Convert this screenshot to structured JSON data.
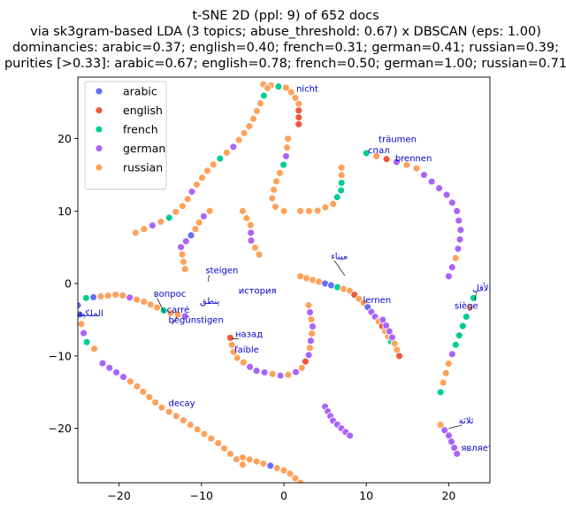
{
  "chart_data": {
    "type": "scatter",
    "title_lines": [
      "t-SNE 2D (ppl: 9) of 652 docs",
      "via sk3gram-based LDA (3 topics; abuse_threshold: 0.67) x DBSCAN (eps: 1.00)",
      "dominancies: arabic=0.37; english=0.40; french=0.31; german=0.41; russian=0.39;",
      "purities [>0.33]: arabic=0.67; english=0.78; french=0.50; german=1.00; russian=0.71"
    ],
    "xlabel": "",
    "ylabel": "",
    "xlim": [
      -25,
      25
    ],
    "ylim": [
      -27.5,
      28.5
    ],
    "xticks": [
      -20,
      -10,
      0,
      10,
      20
    ],
    "yticks": [
      -20,
      -10,
      0,
      10,
      20
    ],
    "legend_position": "top-left",
    "series": [
      {
        "name": "arabic",
        "color": "#636efa"
      },
      {
        "name": "english",
        "color": "#ef553b"
      },
      {
        "name": "french",
        "color": "#00cc96"
      },
      {
        "name": "german",
        "color": "#ab63fa"
      },
      {
        "name": "russian",
        "color": "#ffa15a"
      }
    ],
    "clusters": [
      {
        "path": [
          [
            -2.5,
            27.5
          ],
          [
            0.5,
            27
          ],
          [
            1.8,
            25
          ],
          [
            1.8,
            22
          ]
        ],
        "colors": [
          4,
          4,
          2,
          4,
          4,
          4,
          4,
          1,
          1,
          1
        ]
      },
      {
        "path": [
          [
            -18,
            7
          ],
          [
            -14,
            9
          ],
          [
            -12,
            11
          ],
          [
            -11,
            13
          ],
          [
            -9,
            16
          ],
          [
            -6,
            19
          ],
          [
            -4,
            22
          ],
          [
            -2,
            27
          ]
        ],
        "colors": [
          4,
          4,
          3,
          4,
          2,
          4,
          4,
          4,
          3,
          4,
          4,
          4,
          4,
          2,
          4,
          3,
          4,
          4,
          4,
          4,
          4,
          4,
          2,
          4
        ]
      },
      {
        "path": [
          [
            0.5,
            20
          ],
          [
            0.2,
            17
          ],
          [
            -0.8,
            14.5
          ],
          [
            -1.5,
            12
          ],
          [
            -1,
            10.5
          ],
          [
            0,
            10
          ]
        ],
        "colors": [
          4,
          4,
          3,
          2,
          4,
          4,
          4,
          4,
          4,
          4
        ]
      },
      {
        "path": [
          [
            2,
            10
          ],
          [
            4,
            10
          ],
          [
            6,
            11
          ],
          [
            7,
            13
          ],
          [
            7,
            16
          ]
        ],
        "colors": [
          4,
          4,
          4,
          4,
          4,
          2,
          2,
          2,
          4,
          4
        ]
      },
      {
        "path": [
          [
            10,
            18
          ],
          [
            13,
            17
          ],
          [
            16,
            16
          ],
          [
            18,
            14
          ],
          [
            20,
            12
          ],
          [
            21,
            10
          ]
        ],
        "colors": [
          2,
          4,
          1,
          3,
          4,
          4,
          3,
          3,
          3,
          3,
          3,
          3
        ]
      },
      {
        "path": [
          [
            21,
            10
          ],
          [
            21.5,
            7
          ],
          [
            21,
            4
          ],
          [
            20,
            1
          ]
        ],
        "colors": [
          3,
          3,
          3,
          3,
          3,
          4,
          3,
          3
        ]
      },
      {
        "path": [
          [
            -12,
            2
          ],
          [
            -12.5,
            5
          ],
          [
            -11,
            7
          ],
          [
            -10,
            9
          ],
          [
            -9,
            10
          ]
        ],
        "colors": [
          4,
          4,
          4,
          3,
          3,
          0,
          4,
          4,
          3,
          4
        ]
      },
      {
        "path": [
          [
            -5,
            10
          ],
          [
            -4,
            8
          ],
          [
            -4,
            6
          ],
          [
            -3,
            4
          ]
        ],
        "colors": [
          4,
          4,
          4,
          3,
          3,
          4,
          4
        ]
      },
      {
        "path": [
          [
            2,
            1
          ],
          [
            5,
            0
          ],
          [
            8,
            -1
          ],
          [
            10,
            -3
          ],
          [
            12,
            -6
          ],
          [
            13,
            -8
          ]
        ],
        "colors": [
          4,
          4,
          4,
          4,
          0,
          0,
          2,
          4,
          4,
          1,
          4,
          4,
          0,
          3,
          3,
          4,
          1,
          4,
          4,
          2
        ]
      },
      {
        "path": [
          [
            -24,
            -2
          ],
          [
            -20,
            -1.5
          ],
          [
            -17,
            -2.5
          ],
          [
            -14,
            -4
          ],
          [
            -12,
            -4.5
          ]
        ],
        "colors": [
          2,
          0,
          4,
          4,
          4,
          4,
          3,
          4,
          4,
          4,
          4,
          2,
          4,
          4,
          3
        ]
      },
      {
        "path": [
          [
            -25,
            -3
          ],
          [
            -24.5,
            -6
          ],
          [
            -24,
            -8
          ],
          [
            -23,
            -9
          ]
        ],
        "colors": [
          0,
          0,
          4,
          3,
          2,
          4
        ]
      },
      {
        "path": [
          [
            -6.5,
            -7.5
          ],
          [
            -6,
            -10
          ],
          [
            -3.5,
            -12
          ],
          [
            0,
            -12.8
          ],
          [
            2,
            -12
          ],
          [
            3,
            -10
          ],
          [
            3.5,
            -6
          ],
          [
            3,
            -3
          ]
        ],
        "colors": [
          1,
          4,
          4,
          4,
          4,
          3,
          3,
          3,
          4,
          3,
          4,
          3,
          4,
          1,
          3,
          4,
          3,
          4,
          3,
          4,
          3,
          4
        ]
      },
      {
        "path": [
          [
            23,
            -2
          ],
          [
            22,
            -5
          ],
          [
            21,
            -8
          ],
          [
            20,
            -11
          ],
          [
            19,
            -15
          ]
        ],
        "colors": [
          2,
          4,
          2,
          2,
          2,
          2,
          3,
          4,
          4,
          4,
          2
        ]
      },
      {
        "path": [
          [
            -22,
            -11
          ],
          [
            -18,
            -14
          ],
          [
            -15,
            -17
          ],
          [
            -12,
            -19
          ],
          [
            -8,
            -22
          ],
          [
            -5,
            -25
          ]
        ],
        "colors": [
          3,
          3,
          3,
          3,
          4,
          4,
          4,
          4,
          4,
          4,
          4,
          4,
          4,
          4,
          4,
          4,
          4,
          4,
          4,
          4,
          4,
          4
        ]
      },
      {
        "path": [
          [
            -5,
            -24
          ],
          [
            -2,
            -25
          ],
          [
            0.5,
            -26
          ],
          [
            2,
            -27.5
          ]
        ],
        "colors": [
          4,
          4,
          4,
          4,
          0,
          4,
          4,
          4,
          4,
          4
        ]
      },
      {
        "path": [
          [
            5,
            -17
          ],
          [
            6,
            -19
          ],
          [
            8,
            -21
          ]
        ],
        "colors": [
          3,
          3,
          3,
          3,
          3,
          3,
          3,
          3
        ]
      },
      {
        "path": [
          [
            12,
            -5
          ],
          [
            13,
            -7
          ],
          [
            14,
            -10
          ]
        ],
        "colors": [
          3,
          3,
          3,
          3,
          4,
          4,
          1
        ]
      },
      {
        "path": [
          [
            19,
            -19.5
          ],
          [
            20,
            -21
          ],
          [
            21,
            -23.5
          ]
        ],
        "colors": [
          4,
          3,
          3,
          3,
          3,
          3
        ]
      }
    ],
    "annotations": [
      {
        "text": "nicht",
        "x": 1.5,
        "y": 26.5,
        "tx": 1.5,
        "ty": 26.5
      },
      {
        "text": "träumen",
        "x": 11.5,
        "y": 19.5,
        "tx": 11.5,
        "ty": 19.5
      },
      {
        "text": "спал",
        "x": 10.2,
        "y": 18.0,
        "tx": 10.2,
        "ty": 18.0
      },
      {
        "text": "brennen",
        "x": 13.5,
        "y": 16.9,
        "tx": 13.5,
        "ty": 16.9
      },
      {
        "text": "steigen",
        "x": -9.5,
        "y": 1.4,
        "tx": -9.2,
        "ty": 0.3
      },
      {
        "text": "история",
        "x": -5.5,
        "y": -1.4,
        "tx": -5.5,
        "ty": -1.4
      },
      {
        "text": "вопрос",
        "x": -15.8,
        "y": -1.8,
        "tx": -14.5,
        "ty": -4.0
      },
      {
        "text": "ينطق",
        "x": -10.2,
        "y": -2.8,
        "tx": -10.2,
        "ty": -2.8
      },
      {
        "text": "carré",
        "x": -14.2,
        "y": -4.0,
        "tx": -13.8,
        "ty": -4.2
      },
      {
        "text": "begünstigen",
        "x": -14.0,
        "y": -5.4,
        "tx": -13.0,
        "ty": -4.6
      },
      {
        "text": "назад",
        "x": -5.9,
        "y": -7.4,
        "tx": -6.3,
        "ty": -7.6
      },
      {
        "text": "faible",
        "x": -6.0,
        "y": -9.5,
        "tx": -6.0,
        "ty": -9.5
      },
      {
        "text": "ميناء",
        "x": 5.7,
        "y": 3.4,
        "tx": 7.4,
        "ty": 1.1
      },
      {
        "text": "lernen",
        "x": 9.6,
        "y": -2.7,
        "tx": 9.6,
        "ty": -2.7
      },
      {
        "text": "الأقل",
        "x": 22.9,
        "y": -1.0,
        "tx": 23.2,
        "ty": -2.4
      },
      {
        "text": "siège",
        "x": 20.7,
        "y": -3.5,
        "tx": 20.7,
        "ty": -3.5
      },
      {
        "text": "الملكية",
        "x": -25.0,
        "y": -4.5,
        "tx": -25.0,
        "ty": -4.5
      },
      {
        "text": "decay",
        "x": -14.0,
        "y": -16.9,
        "tx": -14.0,
        "ty": -16.9
      },
      {
        "text": "ثلاثة",
        "x": 21.2,
        "y": -19.3,
        "tx": 20.0,
        "ty": -20.0
      },
      {
        "text": "является",
        "x": 21.5,
        "y": -23.1,
        "tx": 21.5,
        "ty": -23.1
      }
    ]
  }
}
